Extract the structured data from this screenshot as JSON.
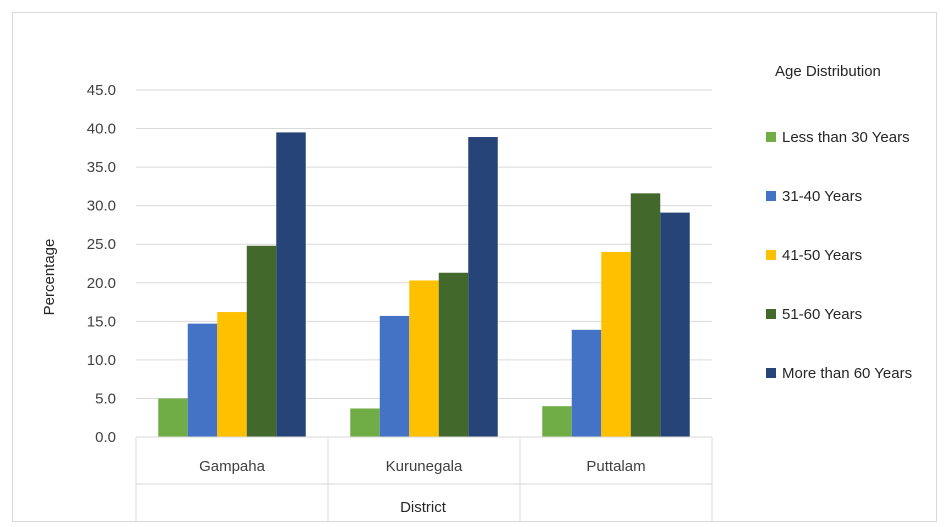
{
  "chart_data": {
    "type": "bar",
    "categories": [
      "Gampaha",
      "Kurunegala",
      "Puttalam"
    ],
    "series": [
      {
        "name": "Less than 30 Years",
        "color": "#70ad47",
        "values": [
          5.0,
          3.7,
          4.0
        ]
      },
      {
        "name": "31-40 Years",
        "color": "#4472c4",
        "values": [
          14.7,
          15.7,
          13.9
        ]
      },
      {
        "name": "41-50 Years",
        "color": "#ffc000",
        "values": [
          16.2,
          20.3,
          24.0
        ]
      },
      {
        "name": "51-60 Years",
        "color": "#43682b",
        "values": [
          24.8,
          21.3,
          31.6
        ]
      },
      {
        "name": "More than 60 Years",
        "color": "#264478",
        "values": [
          39.5,
          38.9,
          29.1
        ]
      }
    ],
    "xlabel": "District",
    "ylabel": "Percentage",
    "ylim": [
      0,
      45
    ],
    "yticks": [
      "0.0",
      "5.0",
      "10.0",
      "15.0",
      "20.0",
      "25.0",
      "30.0",
      "35.0",
      "40.0",
      "45.0"
    ],
    "legend_title": "Age Distribution",
    "legend_placement": "right",
    "grid": true
  }
}
